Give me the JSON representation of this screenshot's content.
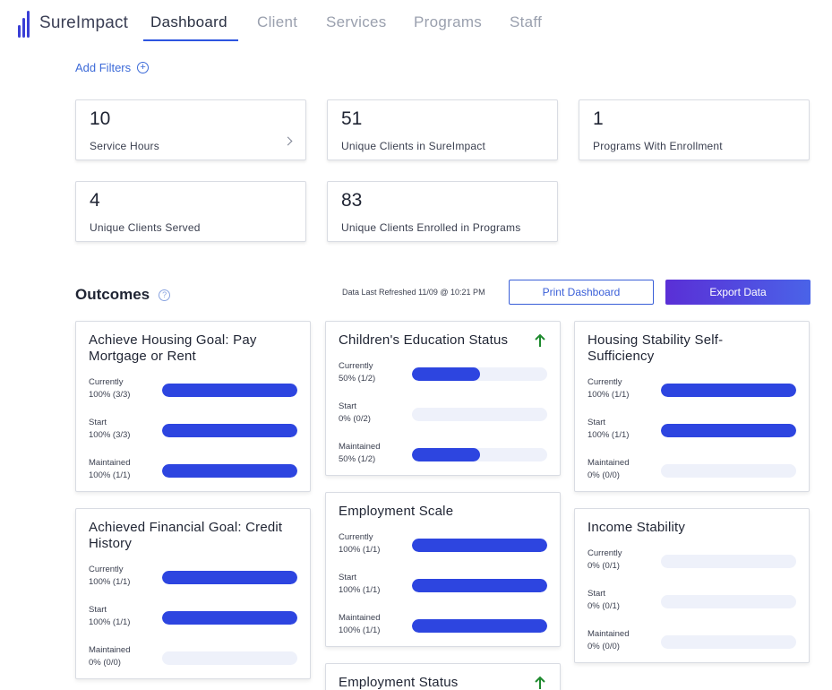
{
  "brand": {
    "name": "SureImpact",
    "color": "#3a3fd6"
  },
  "nav": {
    "tabs": [
      {
        "label": "Dashboard",
        "active": true
      },
      {
        "label": "Client",
        "active": false
      },
      {
        "label": "Services",
        "active": false
      },
      {
        "label": "Programs",
        "active": false
      },
      {
        "label": "Staff",
        "active": false
      }
    ]
  },
  "filters": {
    "add_label": "Add Filters",
    "icon": "plus-circle-icon"
  },
  "stats": [
    {
      "value": "10",
      "label": "Service Hours",
      "has_chevron": true
    },
    {
      "value": "51",
      "label": "Unique Clients in SureImpact"
    },
    {
      "value": "1",
      "label": "Programs With Enrollment"
    },
    {
      "value": "4",
      "label": "Unique Clients Served"
    },
    {
      "value": "83",
      "label": "Unique Clients Enrolled in Programs"
    }
  ],
  "outcomes": {
    "title": "Outcomes",
    "help_icon": "help-circle-icon",
    "refreshed": "Data Last Refreshed 11/09 @ 10:21 PM",
    "print_label": "Print Dashboard",
    "export_label": "Export Data",
    "accent": "#2d45e0",
    "arrow_color": "#1e8a2e",
    "cards": [
      {
        "title": "Achieve Housing Goal: Pay Mortgage or Rent",
        "arrow": false,
        "rows": [
          {
            "name": "Currently",
            "value": "100% (3/3)",
            "percent": 100
          },
          {
            "name": "Start",
            "value": "100% (3/3)",
            "percent": 100
          },
          {
            "name": "Maintained",
            "value": "100% (1/1)",
            "percent": 100
          }
        ]
      },
      {
        "title": "Children's Education Status",
        "arrow": true,
        "rows": [
          {
            "name": "Currently",
            "value": "50% (1/2)",
            "percent": 50
          },
          {
            "name": "Start",
            "value": "0% (0/2)",
            "percent": 0
          },
          {
            "name": "Maintained",
            "value": "50% (1/2)",
            "percent": 50
          }
        ]
      },
      {
        "title": "Housing Stability Self-Sufficiency",
        "arrow": false,
        "rows": [
          {
            "name": "Currently",
            "value": "100% (1/1)",
            "percent": 100
          },
          {
            "name": "Start",
            "value": "100% (1/1)",
            "percent": 100
          },
          {
            "name": "Maintained",
            "value": "0% (0/0)",
            "percent": 0
          }
        ]
      },
      {
        "title": "Achieved Financial Goal: Credit History",
        "arrow": false,
        "rows": [
          {
            "name": "Currently",
            "value": "100% (1/1)",
            "percent": 100
          },
          {
            "name": "Start",
            "value": "100% (1/1)",
            "percent": 100
          },
          {
            "name": "Maintained",
            "value": "0% (0/0)",
            "percent": 0
          }
        ]
      },
      {
        "title": "Employment Scale",
        "arrow": false,
        "rows": [
          {
            "name": "Currently",
            "value": "100% (1/1)",
            "percent": 100
          },
          {
            "name": "Start",
            "value": "100% (1/1)",
            "percent": 100
          },
          {
            "name": "Maintained",
            "value": "100% (1/1)",
            "percent": 100
          }
        ]
      },
      {
        "title": "Income Stability",
        "arrow": false,
        "rows": [
          {
            "name": "Currently",
            "value": "0% (0/1)",
            "percent": 0
          },
          {
            "name": "Start",
            "value": "0% (0/1)",
            "percent": 0
          },
          {
            "name": "Maintained",
            "value": "0% (0/0)",
            "percent": 0
          }
        ]
      },
      {
        "title": "Employment Status",
        "arrow": true,
        "rows": []
      }
    ]
  }
}
